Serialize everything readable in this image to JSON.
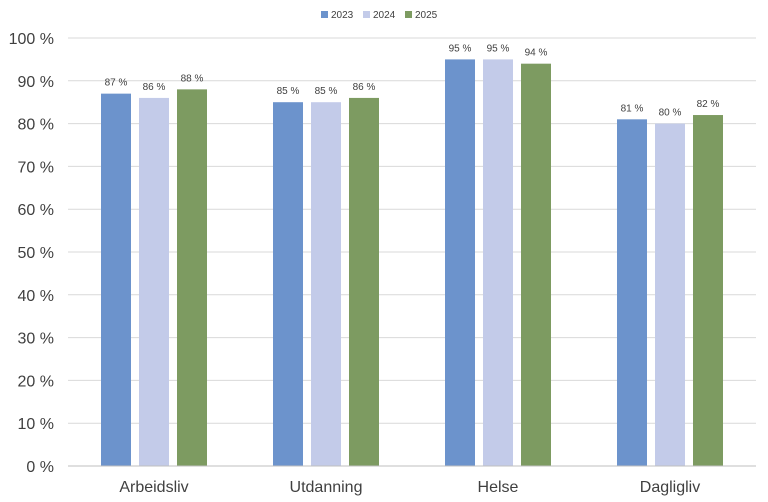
{
  "chart_data": {
    "type": "bar",
    "title": "",
    "xlabel": "",
    "ylabel": "",
    "categories": [
      "Arbeidsliv",
      "Utdanning",
      "Helse",
      "Dagligliv"
    ],
    "series": [
      {
        "name": "2023",
        "color": "#6c93cc",
        "values": [
          87,
          85,
          95,
          81
        ]
      },
      {
        "name": "2024",
        "color": "#c3cbe9",
        "values": [
          86,
          85,
          95,
          80
        ]
      },
      {
        "name": "2025",
        "color": "#7d9b61",
        "values": [
          88,
          86,
          94,
          82
        ]
      }
    ],
    "data_labels": [
      [
        "87 %",
        "85 %",
        "95 %",
        "81 %"
      ],
      [
        "86 %",
        "85 %",
        "95 %",
        "80 %"
      ],
      [
        "88 %",
        "86 %",
        "94 %",
        "82 %"
      ]
    ],
    "ylim": [
      0,
      100
    ],
    "y_ticks": [
      0,
      10,
      20,
      30,
      40,
      50,
      60,
      70,
      80,
      90,
      100
    ],
    "y_tick_labels": [
      "0 %",
      "10 %",
      "20 %",
      "30 %",
      "40 %",
      "50 %",
      "60 %",
      "70 %",
      "80 %",
      "90 %",
      "100 %"
    ],
    "grid": true,
    "legend_position": "top-center"
  }
}
